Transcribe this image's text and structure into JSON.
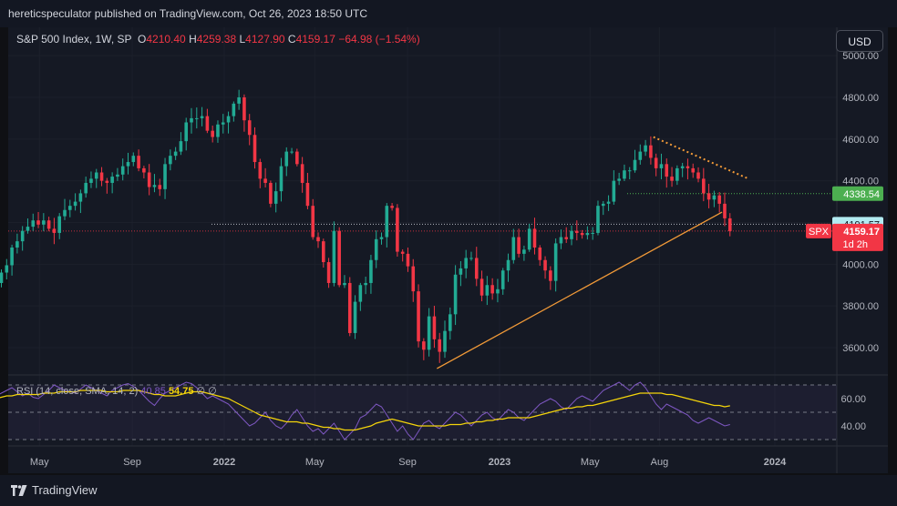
{
  "header": {
    "publisher": "hereticspeculator published on TradingView.com, Oct 26, 2023 18:50 UTC"
  },
  "legend": {
    "symbol": "S&P 500 Index, 1W, SP",
    "o_label": "O",
    "o_value": "4210.40",
    "h_label": "H",
    "h_value": "4259.38",
    "l_label": "L",
    "l_value": "4127.90",
    "c_label": "C",
    "c_value": "4159.17",
    "change": "−64.98 (−1.54%)"
  },
  "currency_button": "USD",
  "rsi_legend": {
    "text": "RSI (14, close, SMA, 14, 2)",
    "rsi_value": "40.85",
    "sma_value": "54.75",
    "extra": "∅ ∅"
  },
  "footer": {
    "brand": "TradingView"
  },
  "colors": {
    "up": "#22ab94",
    "down": "#f23645",
    "rsi": "#7e57c2",
    "rsi_ma": "#f5d50a",
    "trendline": "#f29a38",
    "price_tag": "#f23645",
    "level_tag": "#4caf50",
    "last_tag": "#b2ebf2"
  },
  "chart_data": {
    "type": "candlestick",
    "symbol": "SPX",
    "timeframe": "1W",
    "price_axis": {
      "ticks": [
        "5000.00",
        "4800.00",
        "4600.00",
        "4400.00",
        "4200.00",
        "4000.00",
        "3800.00",
        "3600.00"
      ],
      "range": [
        3470,
        5030
      ]
    },
    "time_axis": {
      "labels": [
        "May",
        "Sep",
        "2022",
        "May",
        "Sep",
        "2023",
        "May",
        "Aug",
        "2024"
      ]
    },
    "first_week": "2021-03-01",
    "closes": [
      3910,
      3960,
      3995,
      4080,
      4110,
      4160,
      4180,
      4210,
      4190,
      4210,
      4170,
      4150,
      4230,
      4260,
      4280,
      4300,
      4340,
      4390,
      4410,
      4440,
      4400,
      4390,
      4420,
      4430,
      4470,
      4490,
      4520,
      4460,
      4440,
      4370,
      4380,
      4360,
      4480,
      4520,
      4540,
      4590,
      4680,
      4700,
      4700,
      4710,
      4640,
      4610,
      4670,
      4680,
      4710,
      4770,
      4800,
      4690,
      4620,
      4490,
      4410,
      4390,
      4290,
      4350,
      4470,
      4540,
      4540,
      4480,
      4390,
      4280,
      4130,
      4110,
      4010,
      3910,
      4160,
      3900,
      3910,
      3670,
      3820,
      3900,
      3910,
      4020,
      4120,
      4130,
      4280,
      4270,
      4060,
      4050,
      3990,
      3870,
      3630,
      3590,
      3750,
      3640,
      3580,
      3680,
      3760,
      3950,
      3980,
      4030,
      4030,
      3930,
      3850,
      3900,
      3860,
      3880,
      3970,
      4020,
      4130,
      4050,
      4070,
      4170,
      4080,
      4020,
      3970,
      3920,
      4100,
      4130,
      4120,
      4160,
      4150,
      4140,
      4150,
      4150,
      4280,
      4290,
      4300,
      4400,
      4410,
      4450,
      4450,
      4500,
      4540,
      4570,
      4510,
      4460,
      4480,
      4420,
      4400,
      4460,
      4470,
      4460,
      4440,
      4410,
      4340,
      4310,
      4330,
      4290,
      4220,
      4159
    ],
    "horizontal_levels": [
      {
        "label": "4338.54",
        "kind": "support"
      },
      {
        "label": "4191.57",
        "kind": "previous-close"
      },
      {
        "label": "4159.17",
        "kind": "last-price"
      }
    ],
    "price_tag": {
      "symbol": "SPX",
      "value": "4159.17",
      "countdown": "1d 2h"
    },
    "trendlines": [
      {
        "kind": "rising-support",
        "from_week": "2022-10-10",
        "from_price": 3500,
        "to_week": "2023-10-23",
        "to_price": 4250
      },
      {
        "kind": "falling-resistance-dotted",
        "from_week": "2023-07-24",
        "from_price": 4610,
        "to_week": "2023-11-27",
        "to_price": 4410
      }
    ],
    "rsi": {
      "ticks": [
        "60.00",
        "40.00"
      ],
      "levels": [
        70,
        50,
        30
      ],
      "range": [
        25,
        75
      ],
      "rsi_series": [
        62,
        64,
        66,
        68,
        65,
        62,
        64,
        61,
        60,
        63,
        66,
        70,
        68,
        66,
        65,
        64,
        67,
        70,
        68,
        66,
        64,
        62,
        66,
        68,
        70,
        71,
        69,
        66,
        62,
        58,
        55,
        60,
        64,
        66,
        68,
        70,
        72,
        71,
        68,
        64,
        60,
        62,
        60,
        58,
        56,
        52,
        48,
        44,
        40,
        42,
        46,
        50,
        44,
        40,
        38,
        42,
        48,
        52,
        46,
        40,
        36,
        38,
        34,
        38,
        42,
        36,
        30,
        34,
        38,
        46,
        48,
        52,
        56,
        54,
        48,
        42,
        36,
        40,
        34,
        30,
        36,
        42,
        44,
        40,
        38,
        42,
        46,
        50,
        48,
        44,
        40,
        44,
        48,
        50,
        46,
        44,
        48,
        52,
        50,
        46,
        44,
        48,
        52,
        56,
        58,
        60,
        58,
        54,
        52,
        56,
        60,
        62,
        60,
        58,
        62,
        66,
        68,
        70,
        72,
        69,
        66,
        70,
        72,
        68,
        62,
        56,
        52,
        56,
        54,
        52,
        50,
        48,
        44,
        42,
        44,
        46,
        44,
        42,
        40,
        41
      ],
      "sma_series": [
        60,
        61,
        62,
        62,
        63,
        63,
        63,
        63,
        63,
        64,
        64,
        64,
        65,
        65,
        65,
        65,
        66,
        66,
        66,
        66,
        66,
        65,
        65,
        65,
        66,
        66,
        66,
        66,
        65,
        64,
        63,
        63,
        62,
        62,
        62,
        63,
        64,
        65,
        65,
        65,
        64,
        63,
        62,
        61,
        60,
        58,
        56,
        54,
        52,
        50,
        48,
        47,
        46,
        45,
        44,
        43,
        43,
        43,
        42,
        42,
        41,
        40,
        39,
        39,
        38,
        38,
        37,
        37,
        37,
        38,
        39,
        40,
        42,
        43,
        44,
        45,
        44,
        43,
        42,
        41,
        40,
        40,
        40,
        40,
        40,
        40,
        41,
        41,
        41,
        42,
        42,
        43,
        43,
        44,
        44,
        45,
        45,
        46,
        46,
        46,
        46,
        46,
        47,
        48,
        49,
        50,
        51,
        52,
        53,
        53,
        54,
        54,
        55,
        55,
        56,
        57,
        58,
        59,
        60,
        61,
        62,
        63,
        64,
        64,
        64,
        64,
        64,
        63,
        63,
        62,
        61,
        60,
        59,
        58,
        57,
        56,
        55,
        55,
        54,
        54.75
      ]
    }
  }
}
